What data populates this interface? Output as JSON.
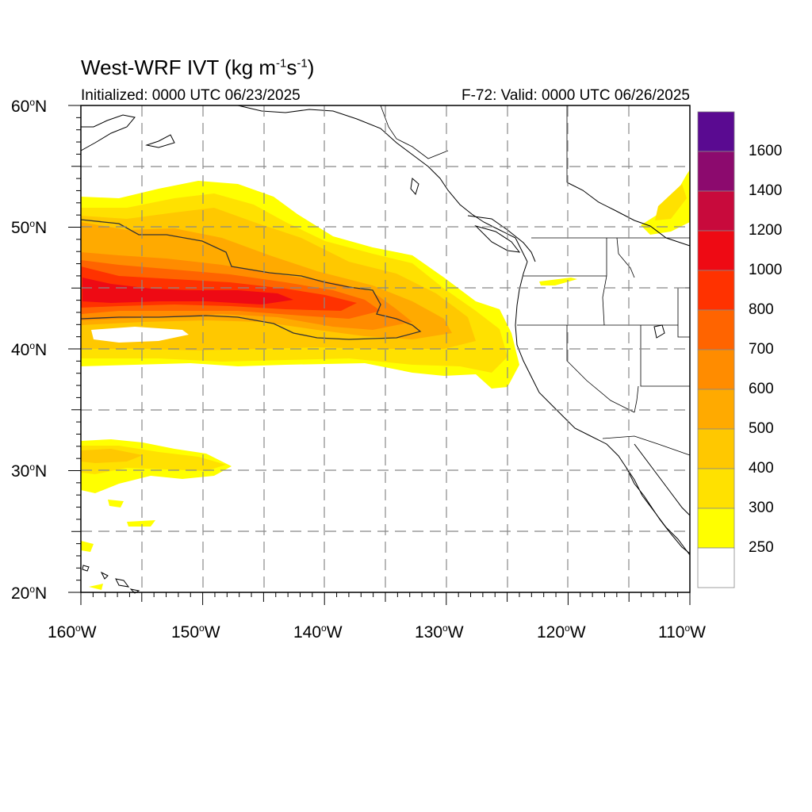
{
  "title": {
    "main": "West-WRF IVT (kg m",
    "exp1": "-1",
    "mid": "s",
    "exp2": "-1",
    "close": ")"
  },
  "subtitle_left": "Initialized: 0000 UTC 06/23/2025",
  "subtitle_right": "F-72: Valid: 0000 UTC 06/26/2025",
  "map": {
    "projection": "lat-lon",
    "lon_range": [
      -160,
      -110
    ],
    "lat_range": [
      20,
      60
    ],
    "gridlines": "dashed",
    "lat_labels": [
      {
        "deg": "60",
        "sym": "o",
        "hem": "N"
      },
      {
        "deg": "50",
        "sym": "o",
        "hem": "N"
      },
      {
        "deg": "40",
        "sym": "o",
        "hem": "N"
      },
      {
        "deg": "30",
        "sym": "o",
        "hem": "N"
      },
      {
        "deg": "20",
        "sym": "o",
        "hem": "N"
      }
    ],
    "lon_labels": [
      {
        "deg": "160",
        "sym": "o",
        "hem": "W"
      },
      {
        "deg": "150",
        "sym": "o",
        "hem": "W"
      },
      {
        "deg": "140",
        "sym": "o",
        "hem": "W"
      },
      {
        "deg": "130",
        "sym": "o",
        "hem": "W"
      },
      {
        "deg": "120",
        "sym": "o",
        "hem": "W"
      },
      {
        "deg": "110",
        "sym": "o",
        "hem": "W"
      }
    ]
  },
  "colorbar": {
    "labels": [
      "1600",
      "1400",
      "1200",
      "1000",
      "800",
      "700",
      "600",
      "500",
      "400",
      "300",
      "250"
    ],
    "colors": [
      "#5a0a91",
      "#8c0a6e",
      "#c80a3c",
      "#ee0a14",
      "#ff3200",
      "#ff6400",
      "#ff8c00",
      "#ffaa00",
      "#ffc800",
      "#ffe100",
      "#ffff00",
      "#ffffff"
    ]
  }
}
